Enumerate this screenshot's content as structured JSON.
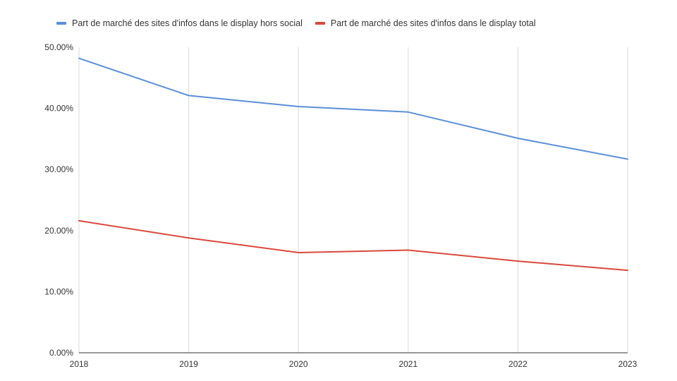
{
  "chart_data": {
    "type": "line",
    "title": "",
    "xlabel": "",
    "ylabel": "",
    "x": [
      "2018",
      "2019",
      "2020",
      "2021",
      "2022",
      "2023"
    ],
    "ylim": [
      0,
      50
    ],
    "y_ticks": [
      "0.00%",
      "10.00%",
      "20.00%",
      "30.00%",
      "40.00%",
      "50.00%"
    ],
    "grid": "vertical",
    "legend_position": "top-left",
    "series": [
      {
        "name": "Part de marché des sites d'infos dans le display hors social",
        "color": "#5b8fd9",
        "values": [
          48.2,
          42.1,
          40.3,
          39.4,
          35.1,
          31.7
        ]
      },
      {
        "name": "Part de marché des sites d'infos dans le display total",
        "color": "#d9493c",
        "values": [
          21.6,
          18.8,
          16.4,
          16.8,
          15.0,
          13.5
        ]
      }
    ]
  }
}
